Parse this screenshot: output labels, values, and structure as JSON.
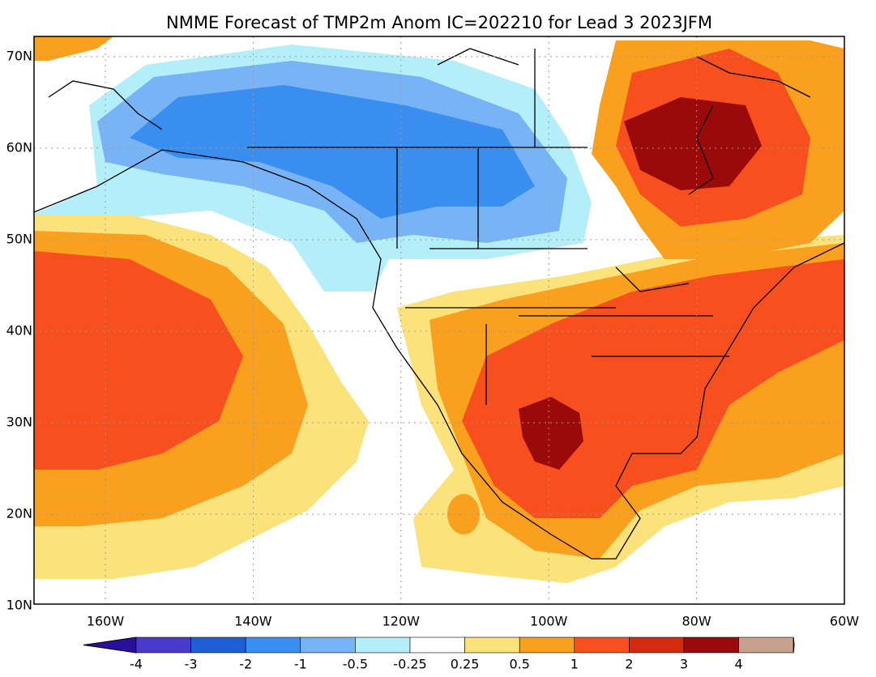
{
  "title": "NMME Forecast of TMP2m Anom IC=202210 for Lead 3 2023JFM",
  "lat_labels": [
    "70N",
    "60N",
    "50N",
    "40N",
    "30N",
    "20N",
    "10N"
  ],
  "lon_labels": [
    "160W",
    "140W",
    "120W",
    "100W",
    "80W",
    "60W"
  ],
  "colorbar": {
    "labels": [
      -4,
      -3,
      -2,
      -1,
      -0.5,
      -0.25,
      0.25,
      0.5,
      1,
      2,
      3,
      4
    ],
    "colors": [
      "#2a0f9c",
      "#4a3acb",
      "#1f5fd6",
      "#3a8ef0",
      "#78b4f5",
      "#b4eef8",
      "#ffffff",
      "#fce27a",
      "#f9a01e",
      "#f7501e",
      "#d42a10",
      "#9b0a0a",
      "#c8a090",
      "#8a5a50"
    ]
  }
}
